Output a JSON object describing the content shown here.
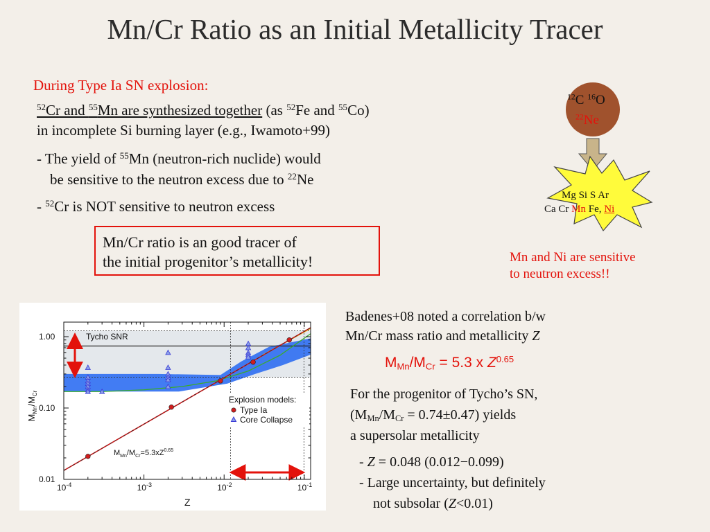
{
  "title": "Mn/Cr Ratio as an Initial Metallicity Tracer",
  "intro_heading": "During Type Ia SN explosion:",
  "synth": {
    "mass_cr": "52",
    "cr": "Cr and ",
    "mass_mn": "55",
    "mn_together": "Mn are synthesized together",
    "as_open": " (as ",
    "mass_fe": "52",
    "fe_and": "Fe and ",
    "mass_co": "55",
    "co_close": "Co)",
    "line2": "in incomplete Si burning layer (e.g., Iwamoto+99)"
  },
  "bullet1": {
    "pre": "- The yield of ",
    "mass_mn": "55",
    "mn_text": "Mn (neutron-rich nuclide) would",
    "line2_pre": "be sensitive to the neutron excess due to ",
    "mass_ne": "22",
    "ne": "Ne"
  },
  "bullet2": {
    "pre": "- ",
    "mass_cr": "52",
    "text": "Cr is NOT sensitive to neutron excess"
  },
  "boxed": {
    "line1": "Mn/Cr ratio is an good tracer of",
    "line2": "the initial progenitor’s metallicity!"
  },
  "diagram": {
    "core_c_mass": "12",
    "core_c": "C",
    "core_o_mass": "16",
    "core_o": "O",
    "core_ne_mass": "22",
    "core_ne": "Ne",
    "star_line1": "Mg Si S Ar",
    "star_ca_cr": "Ca Cr ",
    "star_mn": "Mn",
    "star_fe": " Fe, ",
    "star_ni": "Ni",
    "note_line1": "Mn and Ni are sensitive",
    "note_line2": "to neutron excess!!",
    "colors": {
      "core": "#a0522d",
      "star": "#fffb3b",
      "arrow": "#c8b48a"
    }
  },
  "right_text": {
    "line1": "Badenes+08 noted a correlation b/w",
    "line2_pre": "Mn/Cr mass ratio and metallicity ",
    "line2_z": "Z",
    "eq_m1": "M",
    "eq_sub1": "Mn",
    "eq_slash": "/M",
    "eq_sub2": "Cr",
    "eq_mid": " = 5.3 x ",
    "eq_z": "Z",
    "eq_exp": "0.65",
    "p1": "For the progenitor of Tycho’s SN,",
    "p2_pre": "(M",
    "p2_sub1": "Mn",
    "p2_mid": "/M",
    "p2_sub2": "Cr",
    "p2_post": " = 0.74±0.47) yields",
    "p3": "a supersolar metallicity",
    "b1_pre": "- ",
    "b1_z": "Z",
    "b1_post": " = 0.048 (0.012−0.099)",
    "b2": "- Large uncertainty, but definitely",
    "b3_pre": "not subsolar (",
    "b3_z": "Z",
    "b3_post": "<0.01)"
  },
  "chart_data": {
    "type": "scatter",
    "xlabel": "Z",
    "ylabel": "MMn/MCr",
    "x_scale": "log",
    "y_scale": "log",
    "xlim": [
      0.0001,
      0.12
    ],
    "ylim": [
      0.01,
      1.6
    ],
    "x_ticks": [
      "10-4",
      "10-3",
      "10-2",
      "10-1"
    ],
    "y_ticks": [
      "1.00",
      "0.10",
      "0.01"
    ],
    "fit_label": "MMn/MCr=5.3xZ0.65",
    "fit": {
      "coef": 5.3,
      "exp": 0.65
    },
    "tycho_label": "Tycho SNR",
    "tycho_value": 0.74,
    "tycho_band": [
      0.27,
      1.21
    ],
    "z_range": [
      0.012,
      0.099
    ],
    "legend_title": "Explosion models:",
    "series": [
      {
        "name": "Type Ia",
        "marker": "circle",
        "color": "#d21d1d",
        "x": [
          0.0002,
          0.0022,
          0.009,
          0.023,
          0.065
        ],
        "y": [
          0.021,
          0.103,
          0.24,
          0.44,
          0.9
        ]
      },
      {
        "name": "Core Collapse",
        "marker": "triangle",
        "color": "#3a3ad6",
        "x": [
          0.0002,
          0.0002,
          0.0002,
          0.0002,
          0.0002,
          0.0002,
          0.0002,
          0.0003,
          0.002,
          0.002,
          0.002,
          0.002,
          0.002,
          0.002,
          0.02,
          0.02,
          0.02,
          0.02,
          0.02
        ],
        "y": [
          0.37,
          0.27,
          0.24,
          0.22,
          0.2,
          0.18,
          0.17,
          0.17,
          0.6,
          0.37,
          0.3,
          0.27,
          0.25,
          0.2,
          0.8,
          0.7,
          0.6,
          0.56,
          0.52
        ]
      }
    ],
    "colors": {
      "band": "#2e6ef2",
      "fit": "#d21d1d",
      "green": "#3aab2a",
      "yellow": "#e8c21a"
    }
  }
}
